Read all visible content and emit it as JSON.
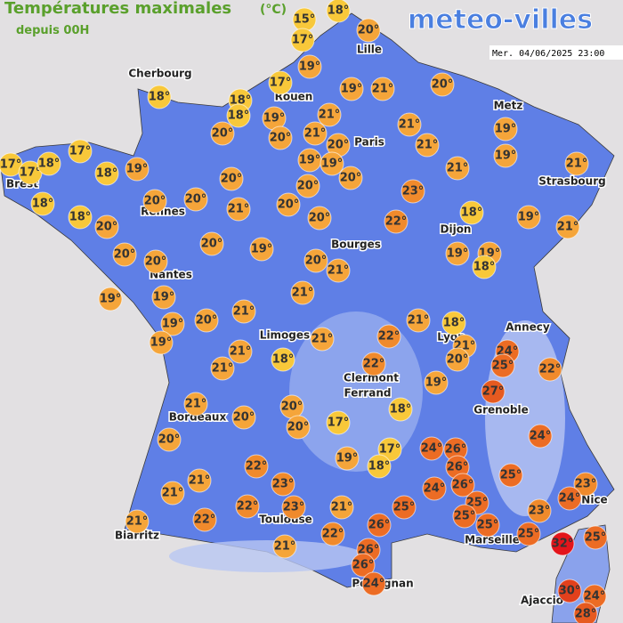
{
  "header": {
    "title": "Températures maximales",
    "unit": "(°C)",
    "subtitle": "depuis 00H",
    "logo": "meteo-villes",
    "date": "Mer. 04/06/2025 23:00"
  },
  "cities": [
    "Cherbourg",
    "Lille",
    "Rouen",
    "Paris",
    "Metz",
    "Brest",
    "Rennes",
    "Strasbourg",
    "Dijon",
    "Bourges",
    "Nantes",
    "Annecy",
    "Limoges",
    "Lyon",
    "Clermont",
    "Ferrand",
    "Grenoble",
    "Bordeaux",
    "Nice",
    "Toulouse",
    "Marseille",
    "Biarritz",
    "Perpignan",
    "Ajaccio"
  ],
  "temperatures": [
    "15°",
    "18°",
    "17°",
    "20°",
    "19°",
    "17°",
    "18°",
    "18°",
    "19°",
    "21°",
    "20°",
    "18°",
    "19°",
    "21°",
    "20°",
    "20°",
    "21°",
    "20°",
    "21°",
    "19°",
    "17°",
    "17°",
    "17°",
    "18°",
    "18°",
    "19°",
    "19°",
    "19°",
    "21°",
    "19°",
    "20°",
    "21°",
    "21°",
    "20°",
    "20°",
    "20°",
    "20°",
    "23°",
    "18°",
    "21°",
    "20°",
    "18°",
    "20°",
    "18°",
    "19°",
    "21°",
    "20°",
    "22°",
    "20°",
    "19°",
    "20°",
    "20°",
    "20°",
    "21°",
    "19°",
    "19°",
    "18°",
    "19°",
    "19°",
    "21°",
    "19°",
    "20°",
    "21°",
    "19°",
    "21°",
    "18°",
    "21°",
    "22°",
    "24°",
    "25°",
    "21°",
    "21°",
    "21°",
    "18°",
    "20°",
    "22°",
    "22°",
    "19°",
    "27°",
    "21°",
    "20°",
    "20°",
    "18°",
    "20°",
    "17°",
    "20°",
    "24°",
    "17°",
    "24°",
    "26°",
    "19°",
    "18°",
    "22°",
    "26°",
    "25°",
    "21°",
    "23°",
    "24°",
    "26°",
    "23°",
    "24°",
    "21°",
    "25°",
    "25°",
    "25°",
    "22°",
    "23°",
    "21°",
    "23°",
    "26°",
    "25°",
    "25°",
    "21°",
    "22°",
    "22°",
    "32°",
    "25°",
    "21°",
    "26°",
    "26°",
    "24°",
    "30°",
    "24°",
    "28°"
  ]
}
